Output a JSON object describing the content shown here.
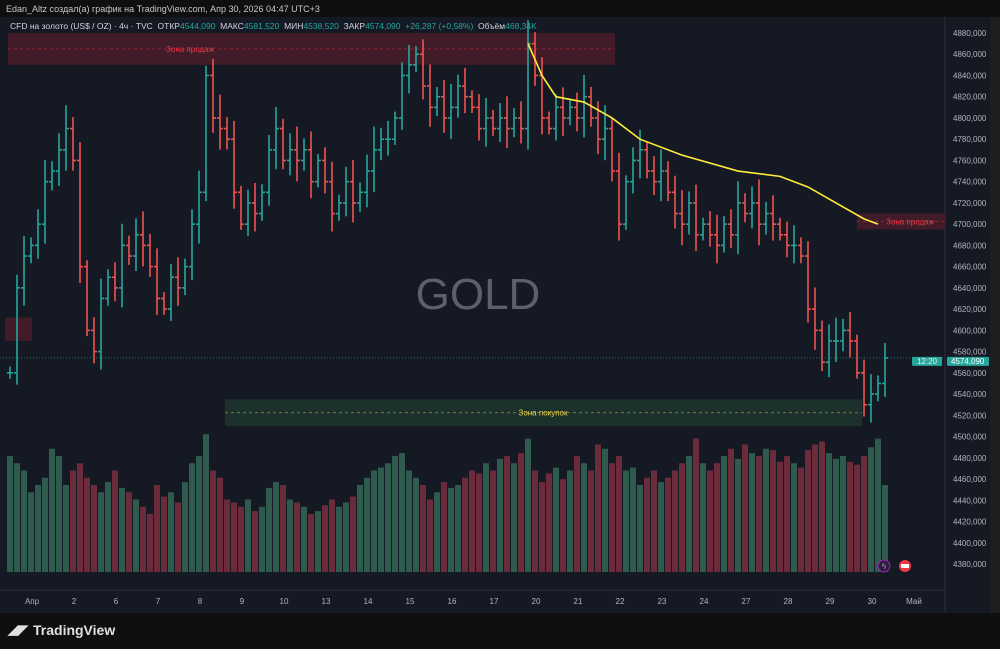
{
  "header": {
    "credit": "Edan_Altz создал(а) график на TradingView.com, Апр 30, 2026 04:47 UTC+3"
  },
  "legend": {
    "symbol": "CFD на золото (US$ / OZ) · 4ч · TVC",
    "open_label": "ОТКР",
    "open": "4544,090",
    "high_label": "МАКС",
    "high": "4581,520",
    "low_label": "МИН",
    "low": "4538,520",
    "close_label": "ЗАКР",
    "close": "4574,090",
    "change": "+26,287 (+0,58%)",
    "volume_label": "Объём",
    "volume": "468,34K"
  },
  "watermark": "GOLD",
  "zones": {
    "sell_top": "Зона продаж",
    "sell_right": "Зона продаж",
    "buy": "Зона покупок"
  },
  "price_tag": {
    "price": "4574,090",
    "countdown": "12:20"
  },
  "footer": {
    "brand": "TradingView"
  },
  "colors": {
    "up": "#26a69a",
    "down": "#ef5350",
    "ma": "#ffeb3b",
    "bg": "#151924"
  },
  "chart_data": {
    "type": "ohlc",
    "y_ticks": [
      4880,
      4860,
      4840,
      4820,
      4800,
      4780,
      4760,
      4740,
      4720,
      4700,
      4680,
      4660,
      4640,
      4620,
      4600,
      4580,
      4560,
      4540,
      4520,
      4500,
      4480,
      4460,
      4440,
      4420,
      4400,
      4380
    ],
    "x_labels": [
      [
        "Апр",
        3
      ],
      [
        "2",
        9
      ],
      [
        "6",
        15
      ],
      [
        "7",
        21
      ],
      [
        "8",
        27
      ],
      [
        "9",
        33
      ],
      [
        "10",
        39
      ],
      [
        "13",
        45
      ],
      [
        "14",
        51
      ],
      [
        "15",
        57
      ],
      [
        "16",
        63
      ],
      [
        "17",
        69
      ],
      [
        "20",
        75
      ],
      [
        "21",
        81
      ],
      [
        "22",
        87
      ],
      [
        "23",
        93
      ],
      [
        "24",
        99
      ],
      [
        "27",
        105
      ],
      [
        "28",
        111
      ],
      [
        "29",
        117
      ],
      [
        "30",
        123
      ],
      [
        "Май",
        129
      ]
    ],
    "start_price": 4560,
    "closes": [
      4560,
      4640,
      4670,
      4680,
      4700,
      4740,
      4750,
      4770,
      4790,
      4760,
      4660,
      4600,
      4580,
      4630,
      4650,
      4640,
      4680,
      4670,
      4690,
      4680,
      4660,
      4630,
      4620,
      4650,
      4640,
      4660,
      4700,
      4730,
      4840,
      4800,
      4790,
      4780,
      4730,
      4700,
      4720,
      4710,
      4730,
      4770,
      4790,
      4760,
      4770,
      4760,
      4770,
      4740,
      4760,
      4740,
      4710,
      4720,
      4740,
      4720,
      4730,
      4750,
      4770,
      4780,
      4780,
      4800,
      4840,
      4850,
      4860,
      4830,
      4810,
      4820,
      4800,
      4810,
      4830,
      4820,
      4810,
      4790,
      4800,
      4790,
      4800,
      4790,
      4800,
      4790,
      4870,
      4840,
      4800,
      4790,
      4810,
      4800,
      4810,
      4800,
      4820,
      4800,
      4780,
      4790,
      4750,
      4700,
      4740,
      4760,
      4770,
      4750,
      4740,
      4750,
      4730,
      4710,
      4700,
      4720,
      4690,
      4700,
      4690,
      4680,
      4700,
      4690,
      4720,
      4710,
      4720,
      4700,
      4710,
      4700,
      4690,
      4680,
      4680,
      4670,
      4620,
      4600,
      4570,
      4590,
      4590,
      4600,
      4590,
      4560,
      4530,
      4540,
      4550,
      4574.09
    ],
    "volumes": [
      80,
      75,
      70,
      55,
      60,
      65,
      85,
      80,
      60,
      70,
      75,
      65,
      60,
      55,
      62,
      70,
      58,
      55,
      50,
      45,
      40,
      60,
      52,
      55,
      48,
      62,
      75,
      80,
      95,
      70,
      65,
      50,
      48,
      45,
      50,
      42,
      45,
      58,
      62,
      60,
      50,
      48,
      45,
      40,
      42,
      46,
      50,
      45,
      48,
      52,
      60,
      65,
      70,
      72,
      75,
      80,
      82,
      70,
      65,
      60,
      50,
      55,
      62,
      58,
      60,
      65,
      70,
      68,
      75,
      70,
      78,
      80,
      75,
      82,
      92,
      70,
      62,
      68,
      72,
      64,
      70,
      80,
      75,
      70,
      88,
      85,
      75,
      80,
      70,
      72,
      60,
      65,
      70,
      62,
      65,
      70,
      75,
      80,
      92,
      75,
      70,
      75,
      80,
      85,
      78,
      88,
      82,
      80,
      85,
      84,
      76,
      80,
      75,
      72,
      84,
      88,
      90,
      82,
      78,
      80,
      76,
      74,
      80,
      86,
      92,
      60
    ],
    "ma": [
      [
        74,
        4870
      ],
      [
        76,
        4840
      ],
      [
        78,
        4820
      ],
      [
        82,
        4815
      ],
      [
        86,
        4800
      ],
      [
        90,
        4780
      ],
      [
        96,
        4765
      ],
      [
        104,
        4750
      ],
      [
        110,
        4745
      ],
      [
        114,
        4735
      ],
      [
        118,
        4720
      ],
      [
        122,
        4705
      ],
      [
        124,
        4700
      ]
    ],
    "y_range": [
      4380,
      4880
    ]
  }
}
